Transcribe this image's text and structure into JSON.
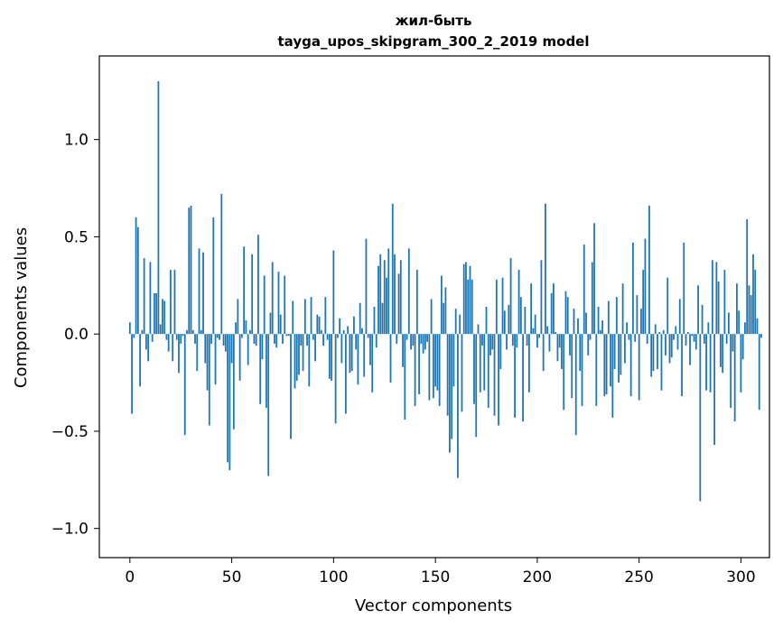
{
  "chart_data": {
    "type": "bar",
    "title": "жил-быть",
    "subtitle": "tayga_upos_skipgram_300_2_2019 model",
    "xlabel": "Vector components",
    "ylabel": "Components values",
    "xlim": [
      -15,
      314
    ],
    "ylim": [
      -1.15,
      1.43
    ],
    "xticks": [
      0,
      50,
      100,
      150,
      200,
      250,
      300
    ],
    "yticks": [
      -1.0,
      -0.5,
      0.0,
      0.5,
      1.0
    ],
    "ytick_labels": [
      "−1.0",
      "−0.5",
      "0.0",
      "0.5",
      "1.0"
    ],
    "grid": false,
    "bar_color": "#1f77b4",
    "values": [
      0.06,
      -0.41,
      -0.02,
      0.6,
      0.55,
      -0.27,
      0.02,
      0.39,
      -0.08,
      -0.14,
      0.37,
      -0.04,
      0.21,
      0.21,
      1.3,
      0.05,
      0.18,
      0.17,
      -0.03,
      -0.09,
      0.33,
      -0.14,
      0.33,
      -0.03,
      -0.2,
      -0.05,
      -0.01,
      -0.52,
      0.02,
      0.65,
      0.66,
      0.02,
      -0.05,
      -0.19,
      0.44,
      0.02,
      0.42,
      -0.15,
      -0.29,
      -0.47,
      -0.05,
      0.6,
      -0.26,
      -0.02,
      -0.03,
      0.72,
      -0.06,
      -0.09,
      -0.66,
      -0.7,
      -0.15,
      -0.49,
      0.06,
      0.18,
      -0.24,
      -0.02,
      0.45,
      0.07,
      -0.16,
      0.02,
      0.41,
      -0.05,
      -0.06,
      0.51,
      -0.36,
      -0.13,
      0.3,
      -0.38,
      -0.73,
      0.11,
      0.37,
      -0.05,
      -0.07,
      0.32,
      0.1,
      -0.05,
      0.3,
      -0.01,
      -0.01,
      -0.54,
      0.17,
      -0.28,
      -0.24,
      -0.21,
      -0.06,
      -0.19,
      0.18,
      -0.06,
      -0.27,
      0.19,
      -0.03,
      -0.14,
      0.1,
      0.09,
      0.02,
      -0.06,
      0.19,
      -0.03,
      -0.23,
      -0.24,
      0.43,
      -0.46,
      -0.02,
      0.08,
      -0.15,
      0.02,
      -0.41,
      0.04,
      -0.2,
      -0.19,
      0.09,
      -0.08,
      -0.26,
      0.16,
      0.03,
      -0.22,
      0.49,
      -0.02,
      -0.16,
      -0.3,
      0.14,
      -0.07,
      0.35,
      0.41,
      0.16,
      0.38,
      0.29,
      0.44,
      -0.25,
      0.67,
      0.41,
      -0.05,
      0.31,
      0.38,
      -0.17,
      -0.44,
      -0.03,
      0.44,
      -0.08,
      -0.06,
      -0.37,
      0.33,
      -0.31,
      -0.05,
      -0.1,
      -0.08,
      -0.04,
      -0.34,
      0.18,
      -0.33,
      -0.27,
      -0.29,
      -0.37,
      0.3,
      0.16,
      0.24,
      -0.42,
      -0.61,
      -0.54,
      -0.27,
      0.13,
      -0.74,
      0.1,
      -0.4,
      0.36,
      0.37,
      0.28,
      0.35,
      0.28,
      -0.36,
      -0.53,
      0.05,
      -0.3,
      -0.06,
      -0.29,
      0.14,
      -0.38,
      -0.11,
      -0.08,
      -0.42,
      0.28,
      -0.47,
      -0.18,
      0.29,
      0.12,
      -0.08,
      0.15,
      0.39,
      -0.06,
      -0.43,
      -0.07,
      0.33,
      0.19,
      -0.45,
      0.14,
      -0.06,
      -0.3,
      0.26,
      0.03,
      0.1,
      -0.07,
      -0.02,
      0.38,
      -0.19,
      0.67,
      0.04,
      -0.09,
      0.21,
      0.26,
      0.01,
      -0.14,
      -0.07,
      -0.18,
      -0.39,
      0.22,
      0.19,
      -0.11,
      -0.33,
      0.13,
      -0.52,
      0.08,
      -0.19,
      -0.37,
      0.46,
      0.11,
      -0.11,
      -0.03,
      0.37,
      0.57,
      -0.37,
      0.14,
      0.02,
      0.07,
      -0.32,
      -0.31,
      0.17,
      -0.27,
      -0.43,
      -0.18,
      0.19,
      -0.25,
      -0.21,
      0.26,
      -0.15,
      0.06,
      -0.03,
      -0.32,
      0.47,
      -0.04,
      0.2,
      -0.34,
      0.13,
      0.33,
      0.49,
      -0.05,
      0.66,
      -0.22,
      -0.19,
      0.05,
      -0.18,
      0.01,
      -0.29,
      0.02,
      -0.11,
      0.29,
      -0.15,
      -0.12,
      -0.03,
      0.04,
      -0.08,
      0.18,
      -0.32,
      0.47,
      -0.06,
      0.01,
      -0.16,
      -0.01,
      -0.04,
      -0.08,
      0.25,
      -0.86,
      0.15,
      -0.05,
      -0.29,
      0.06,
      -0.3,
      0.38,
      -0.57,
      0.37,
      0.27,
      -0.17,
      -0.2,
      0.33,
      -0.05,
      0.11,
      -0.38,
      -0.09,
      -0.45,
      0.26,
      0.12,
      -0.3,
      -0.13,
      0.06,
      0.59,
      0.25,
      0.2,
      0.41,
      0.33,
      0.08,
      -0.39,
      -0.02
    ]
  }
}
